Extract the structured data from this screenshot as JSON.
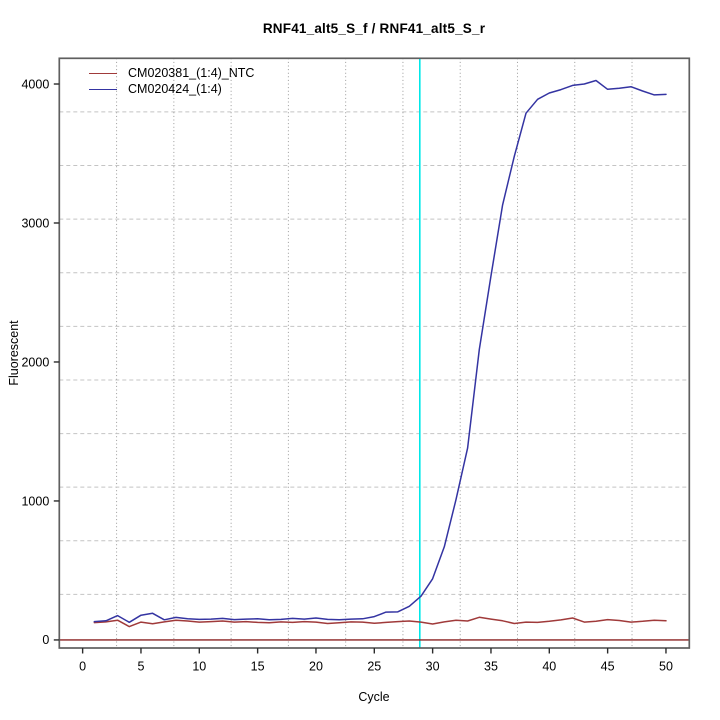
{
  "chart_data": {
    "type": "line",
    "title": "RNF41_alt5_S_f / RNF41_alt5_S_r",
    "xlabel": "Cycle",
    "ylabel": "Fluorescent",
    "x_ticks": [
      0,
      5,
      10,
      15,
      20,
      25,
      30,
      35,
      40,
      45,
      50
    ],
    "y_ticks": [
      0,
      1000,
      2000,
      3000,
      4000
    ],
    "xlim": [
      -2,
      52
    ],
    "ylim": [
      -58,
      4185
    ],
    "grid": {
      "style": "11x11 cells, vertical dotted, horizontal dashed",
      "color_vertical": "#9a9a9a",
      "color_horizontal": "#c4c4c4"
    },
    "x_first_cycle": 1,
    "x_last_cycle": 50,
    "ct_line": {
      "cycle": 28.9,
      "color": "#00e8e8"
    },
    "zero_baseline": {
      "value": 0,
      "color": "#8b2222"
    },
    "legend_position": "top-left, no border",
    "series": [
      {
        "name": "CM020381_(1:4)_NTC",
        "color": "#a03a3a",
        "values": [
          125,
          130,
          142,
          96,
          128,
          116,
          130,
          142,
          136,
          128,
          132,
          136,
          128,
          132,
          126,
          124,
          130,
          126,
          132,
          128,
          118,
          124,
          130,
          128,
          120,
          126,
          132,
          136,
          128,
          115,
          130,
          142,
          136,
          163,
          150,
          138,
          118,
          128,
          126,
          134,
          144,
          158,
          128,
          134,
          146,
          140,
          128,
          134,
          142,
          138
        ]
      },
      {
        "name": "CM020424_(1:4)",
        "color": "#3434a2",
        "values": [
          132,
          138,
          175,
          127,
          178,
          192,
          145,
          162,
          152,
          148,
          150,
          155,
          146,
          150,
          152,
          145,
          148,
          155,
          150,
          158,
          148,
          145,
          150,
          152,
          168,
          200,
          202,
          242,
          315,
          440,
          670,
          1010,
          1380,
          2090,
          2620,
          3130,
          3480,
          3790,
          3890,
          3935,
          3960,
          3990,
          4000,
          4025,
          3962,
          3970,
          3981,
          3950,
          3922,
          3925
        ]
      }
    ],
    "box_color": "#5f5f5f",
    "tick_color": "#2b2b2b",
    "text_color": "#000000"
  }
}
